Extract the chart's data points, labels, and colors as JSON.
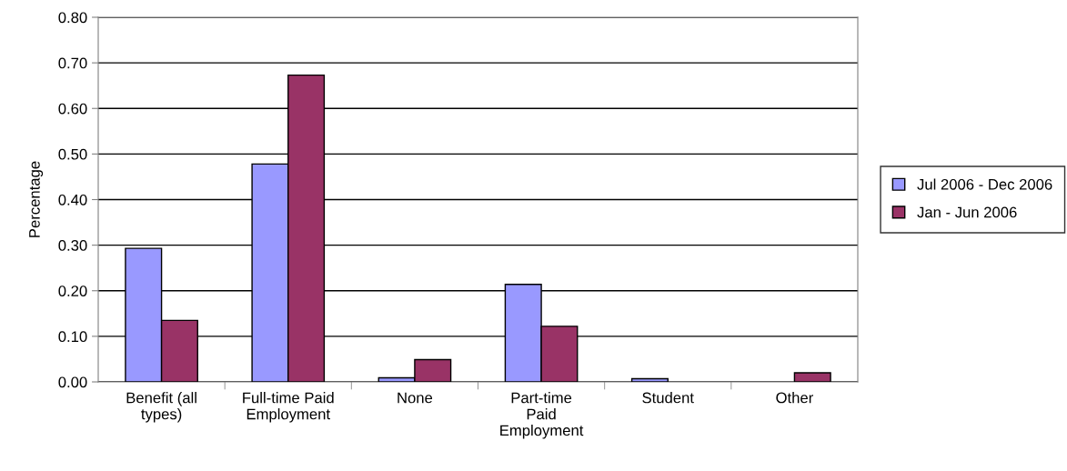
{
  "chart_data": {
    "type": "bar",
    "ylabel": "Percentage",
    "categories": [
      "Benefit (all\ntypes)",
      "Full-time Paid\nEmployment",
      "None",
      "Part-time\nPaid\nEmployment",
      "Student",
      "Other"
    ],
    "series": [
      {
        "name": "Jul 2006 - Dec 2006",
        "color": "#9999ff",
        "values": [
          0.293,
          0.478,
          0.009,
          0.214,
          0.007,
          null
        ]
      },
      {
        "name": "Jan - Jun 2006",
        "color": "#993366",
        "values": [
          0.135,
          0.673,
          0.049,
          0.122,
          null,
          0.02
        ]
      }
    ],
    "ylim": [
      0,
      0.8
    ],
    "yticks": [
      {
        "value": 0,
        "label": "0.00"
      },
      {
        "value": 0.1,
        "label": "0.10"
      },
      {
        "value": 0.2,
        "label": "0.20"
      },
      {
        "value": 0.3,
        "label": "0.30"
      },
      {
        "value": 0.4,
        "label": "0.40"
      },
      {
        "value": 0.5,
        "label": "0.50"
      },
      {
        "value": 0.6,
        "label": "0.60"
      },
      {
        "value": 0.7,
        "label": "0.70"
      },
      {
        "value": 0.8,
        "label": "0.80"
      }
    ],
    "grid": "y",
    "legend": "right"
  }
}
